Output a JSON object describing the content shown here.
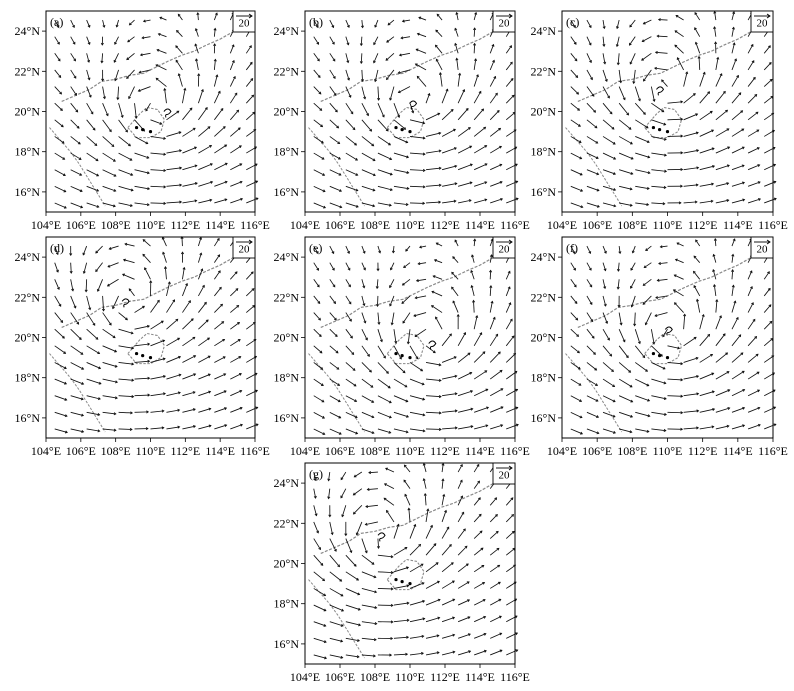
{
  "chart_data": [
    {
      "type": "vector-field",
      "panel_label": "(a)",
      "reference_vector_label": "20",
      "x_ticks": [
        "104°E",
        "106°E",
        "108°E",
        "110°E",
        "112°E",
        "114°E",
        "116°E"
      ],
      "y_ticks": [
        "16°N",
        "18°N",
        "20°N",
        "22°N",
        "24°N"
      ],
      "xlim": [
        104,
        116
      ],
      "ylim": [
        15,
        25
      ],
      "circulation_center": [
        110.3,
        20.1
      ],
      "typhoon_symbol_position": [
        111.0,
        19.9
      ]
    },
    {
      "type": "vector-field",
      "panel_label": "(b)",
      "reference_vector_label": "20",
      "x_ticks": [
        "104°E",
        "106°E",
        "108°E",
        "110°E",
        "112°E",
        "114°E",
        "116°E"
      ],
      "y_ticks": [
        "16°N",
        "18°N",
        "20°N",
        "22°N",
        "24°N"
      ],
      "xlim": [
        104,
        116
      ],
      "ylim": [
        15,
        25
      ],
      "circulation_center": [
        110.3,
        20.4
      ],
      "typhoon_symbol_position": [
        110.2,
        20.3
      ]
    },
    {
      "type": "vector-field",
      "panel_label": "(c)",
      "reference_vector_label": "20",
      "x_ticks": [
        "104°E",
        "106°E",
        "108°E",
        "110°E",
        "112°E",
        "114°E",
        "116°E"
      ],
      "y_ticks": [
        "16°N",
        "18°N",
        "20°N",
        "22°N",
        "24°N"
      ],
      "xlim": [
        104,
        116
      ],
      "ylim": [
        15,
        25
      ],
      "circulation_center": [
        109.9,
        21.1
      ],
      "typhoon_symbol_position": [
        109.6,
        21.0
      ]
    },
    {
      "type": "vector-field",
      "panel_label": "(d)",
      "reference_vector_label": "20",
      "x_ticks": [
        "104°E",
        "106°E",
        "108°E",
        "110°E",
        "112°E",
        "114°E",
        "116°E"
      ],
      "y_ticks": [
        "16°N",
        "18°N",
        "20°N",
        "22°N",
        "24°N"
      ],
      "xlim": [
        104,
        116
      ],
      "ylim": [
        15,
        25
      ],
      "circulation_center": [
        108.7,
        21.6
      ],
      "typhoon_symbol_position": [
        108.6,
        21.7
      ]
    },
    {
      "type": "vector-field",
      "panel_label": "(e)",
      "reference_vector_label": "20",
      "x_ticks": [
        "104°E",
        "106°E",
        "108°E",
        "110°E",
        "112°E",
        "114°E",
        "116°E"
      ],
      "y_ticks": [
        "16°N",
        "18°N",
        "20°N",
        "22°N",
        "24°N"
      ],
      "xlim": [
        104,
        116
      ],
      "ylim": [
        15,
        25
      ],
      "circulation_center": [
        111.2,
        19.8
      ],
      "typhoon_symbol_position": [
        111.3,
        19.6
      ]
    },
    {
      "type": "vector-field",
      "panel_label": "(f)",
      "reference_vector_label": "20",
      "x_ticks": [
        "104°E",
        "106°E",
        "108°E",
        "110°E",
        "112°E",
        "114°E",
        "116°E"
      ],
      "y_ticks": [
        "16°N",
        "18°N",
        "20°N",
        "22°N",
        "24°N"
      ],
      "xlim": [
        104,
        116
      ],
      "ylim": [
        15,
        25
      ],
      "circulation_center": [
        110.2,
        20.2
      ],
      "typhoon_symbol_position": [
        110.1,
        20.3
      ]
    },
    {
      "type": "vector-field",
      "panel_label": "(g)",
      "reference_vector_label": "20",
      "x_ticks": [
        "104°E",
        "106°E",
        "108°E",
        "110°E",
        "112°E",
        "114°E",
        "116°E"
      ],
      "y_ticks": [
        "16°N",
        "18°N",
        "20°N",
        "22°N",
        "24°N"
      ],
      "xlim": [
        104,
        116
      ],
      "ylim": [
        15,
        25
      ],
      "circulation_center": [
        108.3,
        21.2
      ],
      "typhoon_symbol_position": [
        108.4,
        21.3
      ]
    }
  ]
}
